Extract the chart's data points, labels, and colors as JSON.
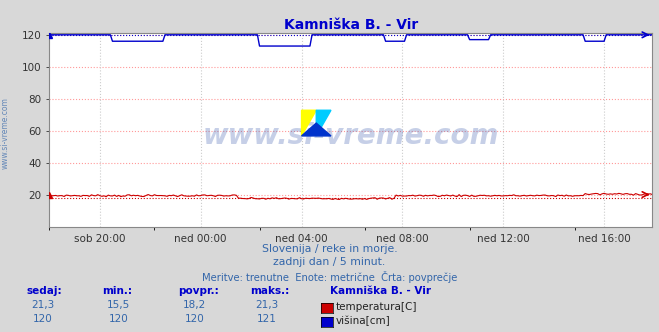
{
  "title": "Kamniška B. - Vir",
  "title_color": "#0000cc",
  "bg_color": "#d8d8d8",
  "plot_bg_color": "#ffffff",
  "grid_color_h": "#ff9999",
  "grid_color_v": "#cccccc",
  "grid_style": ":",
  "xlim": [
    0,
    287
  ],
  "ylim": [
    0,
    121
  ],
  "yticks": [
    20,
    40,
    60,
    80,
    100,
    120
  ],
  "xtick_labels": [
    "sob 20:00",
    "ned 00:00",
    "ned 04:00",
    "ned 08:00",
    "ned 12:00",
    "ned 16:00"
  ],
  "xtick_positions": [
    24,
    72,
    120,
    168,
    216,
    264
  ],
  "temp_color": "#cc0000",
  "height_color": "#0000cc",
  "temp_avg": 18.2,
  "height_avg": 120.0,
  "watermark": "www.si-vreme.com",
  "watermark_color": "#3355aa",
  "watermark_alpha": 0.28,
  "subtitle1": "Slovenija / reke in morje.",
  "subtitle2": "zadnji dan / 5 minut.",
  "subtitle3": "Meritve: trenutne  Enote: metrične  Črta: povprečje",
  "subtitle_color": "#3366aa",
  "table_header_color": "#0000cc",
  "table_data_color": "#3366aa",
  "left_label": "www.si-vreme.com",
  "left_label_color": "#3366aa",
  "headers": [
    "sedaj:",
    "min.:",
    "povpr.:",
    "maks.:"
  ],
  "temp_vals": [
    "21,3",
    "15,5",
    "18,2",
    "21,3"
  ],
  "height_vals": [
    "120",
    "120",
    "120",
    "121"
  ],
  "station_name": "Kamniška B. - Vir",
  "temp_label": "temperatura[C]",
  "height_label": "višina[cm]"
}
